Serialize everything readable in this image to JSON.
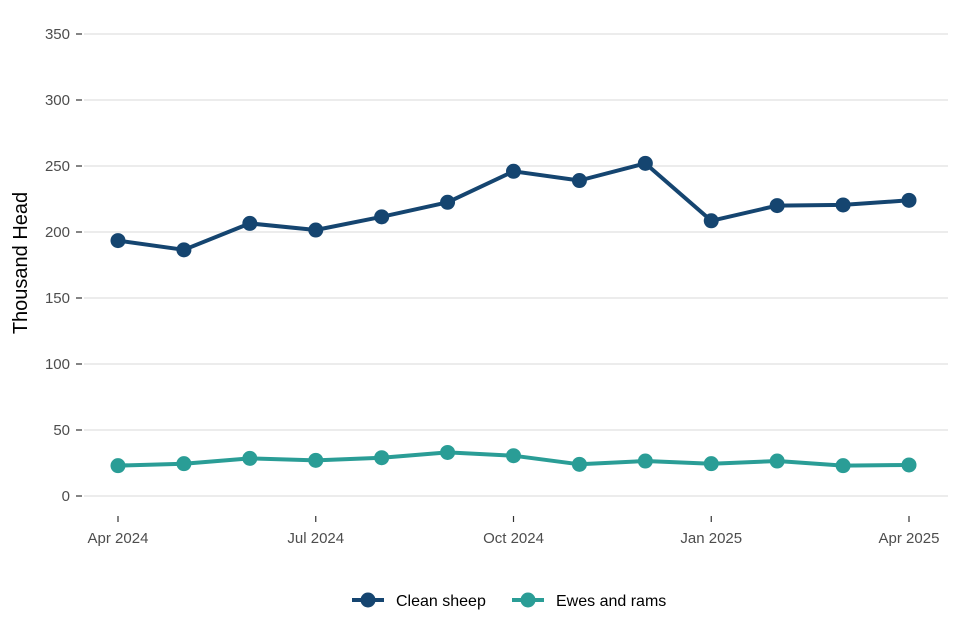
{
  "chart_data": {
    "type": "line",
    "ylabel": "Thousand Head",
    "xlabel": "",
    "ylim": [
      0,
      350
    ],
    "yticks": [
      0,
      50,
      100,
      150,
      200,
      250,
      300,
      350
    ],
    "x": [
      "2024-04",
      "2024-05",
      "2024-06",
      "2024-07",
      "2024-08",
      "2024-09",
      "2024-10",
      "2024-11",
      "2024-12",
      "2025-01",
      "2025-02",
      "2025-03",
      "2025-04"
    ],
    "xticks": [
      {
        "x": "2024-04",
        "label": "Apr 2024"
      },
      {
        "x": "2024-07",
        "label": "Jul 2024"
      },
      {
        "x": "2024-10",
        "label": "Oct 2024"
      },
      {
        "x": "2025-01",
        "label": "Jan 2025"
      },
      {
        "x": "2025-04",
        "label": "Apr 2025"
      }
    ],
    "grid": "horizontal",
    "legend_position": "bottom",
    "series": [
      {
        "name": "Clean sheep",
        "color": "#154570",
        "values": [
          193.5,
          186.5,
          206.5,
          201.5,
          211.5,
          222.5,
          246,
          239,
          252,
          208.5,
          220,
          220.5,
          224
        ]
      },
      {
        "name": "Ewes and rams",
        "color": "#2a9d96",
        "values": [
          23,
          24.5,
          28.5,
          27,
          29,
          33,
          30.5,
          24,
          26.5,
          24.5,
          26.5,
          23,
          23.5
        ]
      }
    ]
  }
}
